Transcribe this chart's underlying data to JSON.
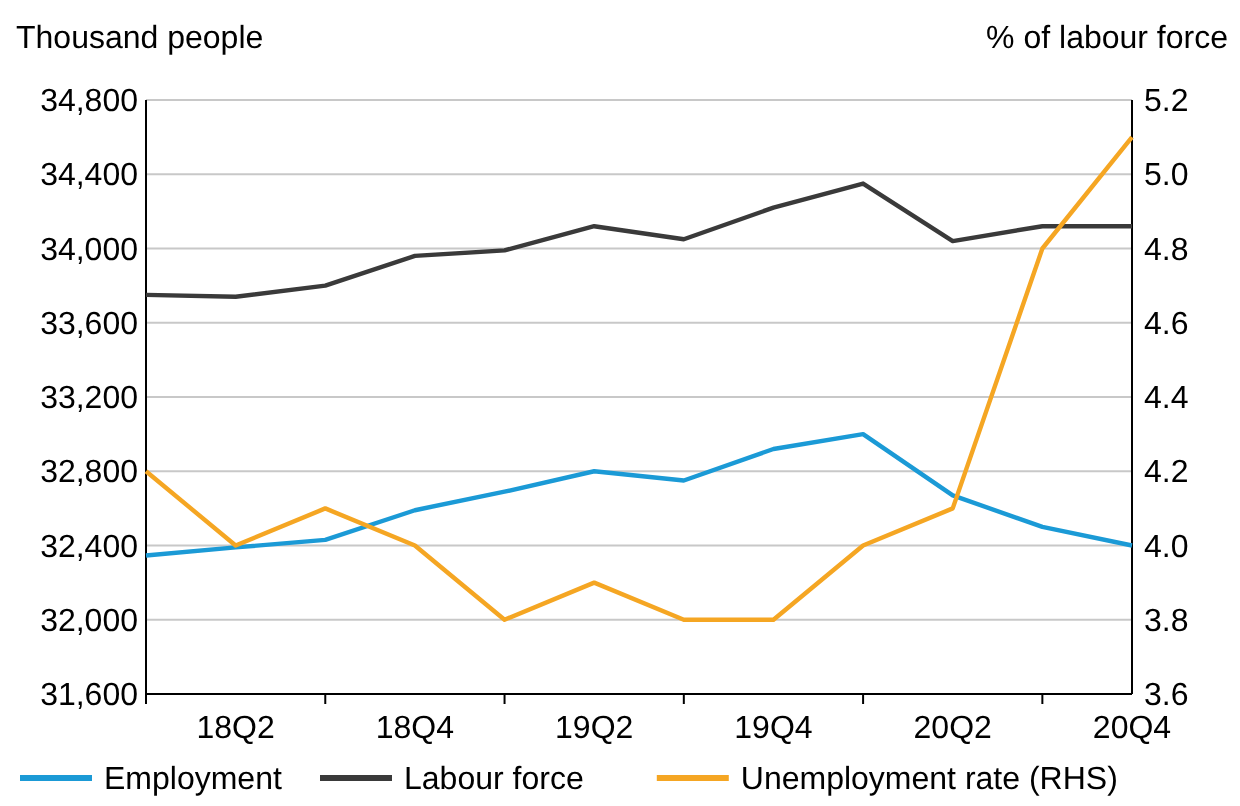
{
  "chart_data": {
    "type": "line",
    "ylabel": "Thousand people",
    "y2label": "% of labour force",
    "categories": [
      null,
      "18Q2",
      null,
      "18Q4",
      null,
      "19Q2",
      null,
      "19Q4",
      null,
      "20Q2",
      null,
      "20Q4"
    ],
    "series": [
      {
        "name": "Employment",
        "color": "#1b9ad6",
        "values": [
          32346,
          32390,
          32430,
          32590,
          32690,
          32800,
          32750,
          32920,
          33000,
          32670,
          32500,
          32400
        ]
      },
      {
        "name": "Labour force",
        "color": "#3a3a3a",
        "values": [
          33750,
          33740,
          33800,
          33960,
          33990,
          34120,
          34050,
          34220,
          34350,
          34040,
          34120,
          34120
        ]
      },
      {
        "name": "Unemployment rate (RHS)",
        "color": "#f5a623",
        "axis": "y2",
        "values": [
          4.2,
          4.0,
          4.1,
          4.0,
          3.8,
          3.9,
          3.8,
          3.8,
          4.0,
          4.1,
          4.8,
          5.1
        ]
      }
    ],
    "ylim": [
      31600,
      34800
    ],
    "yticks": [
      {
        "value": 31600,
        "label": "31,600"
      },
      {
        "value": 32000,
        "label": "32,000"
      },
      {
        "value": 32400,
        "label": "32,400"
      },
      {
        "value": 32800,
        "label": "32,800"
      },
      {
        "value": 33200,
        "label": "33,200"
      },
      {
        "value": 33600,
        "label": "33,600"
      },
      {
        "value": 34000,
        "label": "34,000"
      },
      {
        "value": 34400,
        "label": "34,400"
      },
      {
        "value": 34800,
        "label": "34,800"
      }
    ],
    "y2lim": [
      3.6,
      5.2
    ],
    "y2ticks": [
      {
        "value": 3.6,
        "label": "3.6"
      },
      {
        "value": 3.8,
        "label": "3.8"
      },
      {
        "value": 4.0,
        "label": "4.0"
      },
      {
        "value": 4.2,
        "label": "4.2"
      },
      {
        "value": 4.4,
        "label": "4.4"
      },
      {
        "value": 4.6,
        "label": "4.6"
      },
      {
        "value": 4.8,
        "label": "4.8"
      },
      {
        "value": 5.0,
        "label": "5.0"
      },
      {
        "value": 5.2,
        "label": "5.2"
      }
    ],
    "grid": "y",
    "legend": "bottom",
    "marker": "none",
    "line_style": "solid"
  }
}
